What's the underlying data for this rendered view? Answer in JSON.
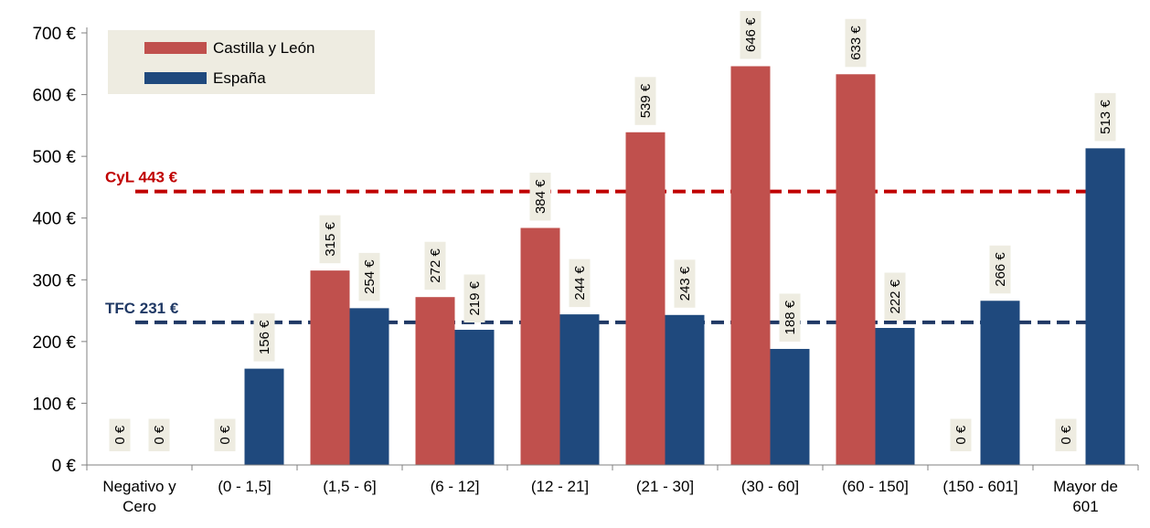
{
  "chart_data": {
    "type": "bar",
    "categories": [
      [
        "Negativo y",
        "Cero"
      ],
      [
        "(0 - 1,5]"
      ],
      [
        "(1,5 - 6]"
      ],
      [
        "(6 - 12]"
      ],
      [
        "(12 - 21]"
      ],
      [
        "(21 - 30]"
      ],
      [
        "(30 - 60]"
      ],
      [
        "(60 - 150]"
      ],
      [
        "(150 - 601]"
      ],
      [
        "Mayor de",
        "601"
      ]
    ],
    "series": [
      {
        "name": "Castilla y León",
        "color": "#c0504d",
        "values": [
          0,
          0,
          315,
          272,
          384,
          539,
          646,
          633,
          0,
          0
        ],
        "labels": [
          "0 €",
          "0 €",
          "315 €",
          "272 €",
          "384 €",
          "539 €",
          "646 €",
          "633 €",
          "0 €",
          "0 €"
        ]
      },
      {
        "name": "España",
        "color": "#1f497d",
        "values": [
          0,
          156,
          254,
          219,
          244,
          243,
          188,
          222,
          266,
          513
        ],
        "labels": [
          "0 €",
          "156 €",
          "254 €",
          "219 €",
          "244 €",
          "243 €",
          "188 €",
          "222 €",
          "266 €",
          "513 €"
        ]
      }
    ],
    "reference_lines": [
      {
        "label": "CyL 443 €",
        "value": 443,
        "color": "#c00000",
        "style": "dashed"
      },
      {
        "label": "TFC 231 €",
        "value": 231,
        "color": "#1f3864",
        "style": "dashed"
      }
    ],
    "yticks": [
      0,
      100,
      200,
      300,
      400,
      500,
      600,
      700
    ],
    "ytick_labels": [
      "0 €",
      "100 €",
      "200 €",
      "300 €",
      "400 €",
      "500 €",
      "600 €",
      "700 €"
    ],
    "ylim": [
      0,
      700
    ],
    "grid": false,
    "legend_position": "top-left",
    "label_background": "#eeece1"
  }
}
